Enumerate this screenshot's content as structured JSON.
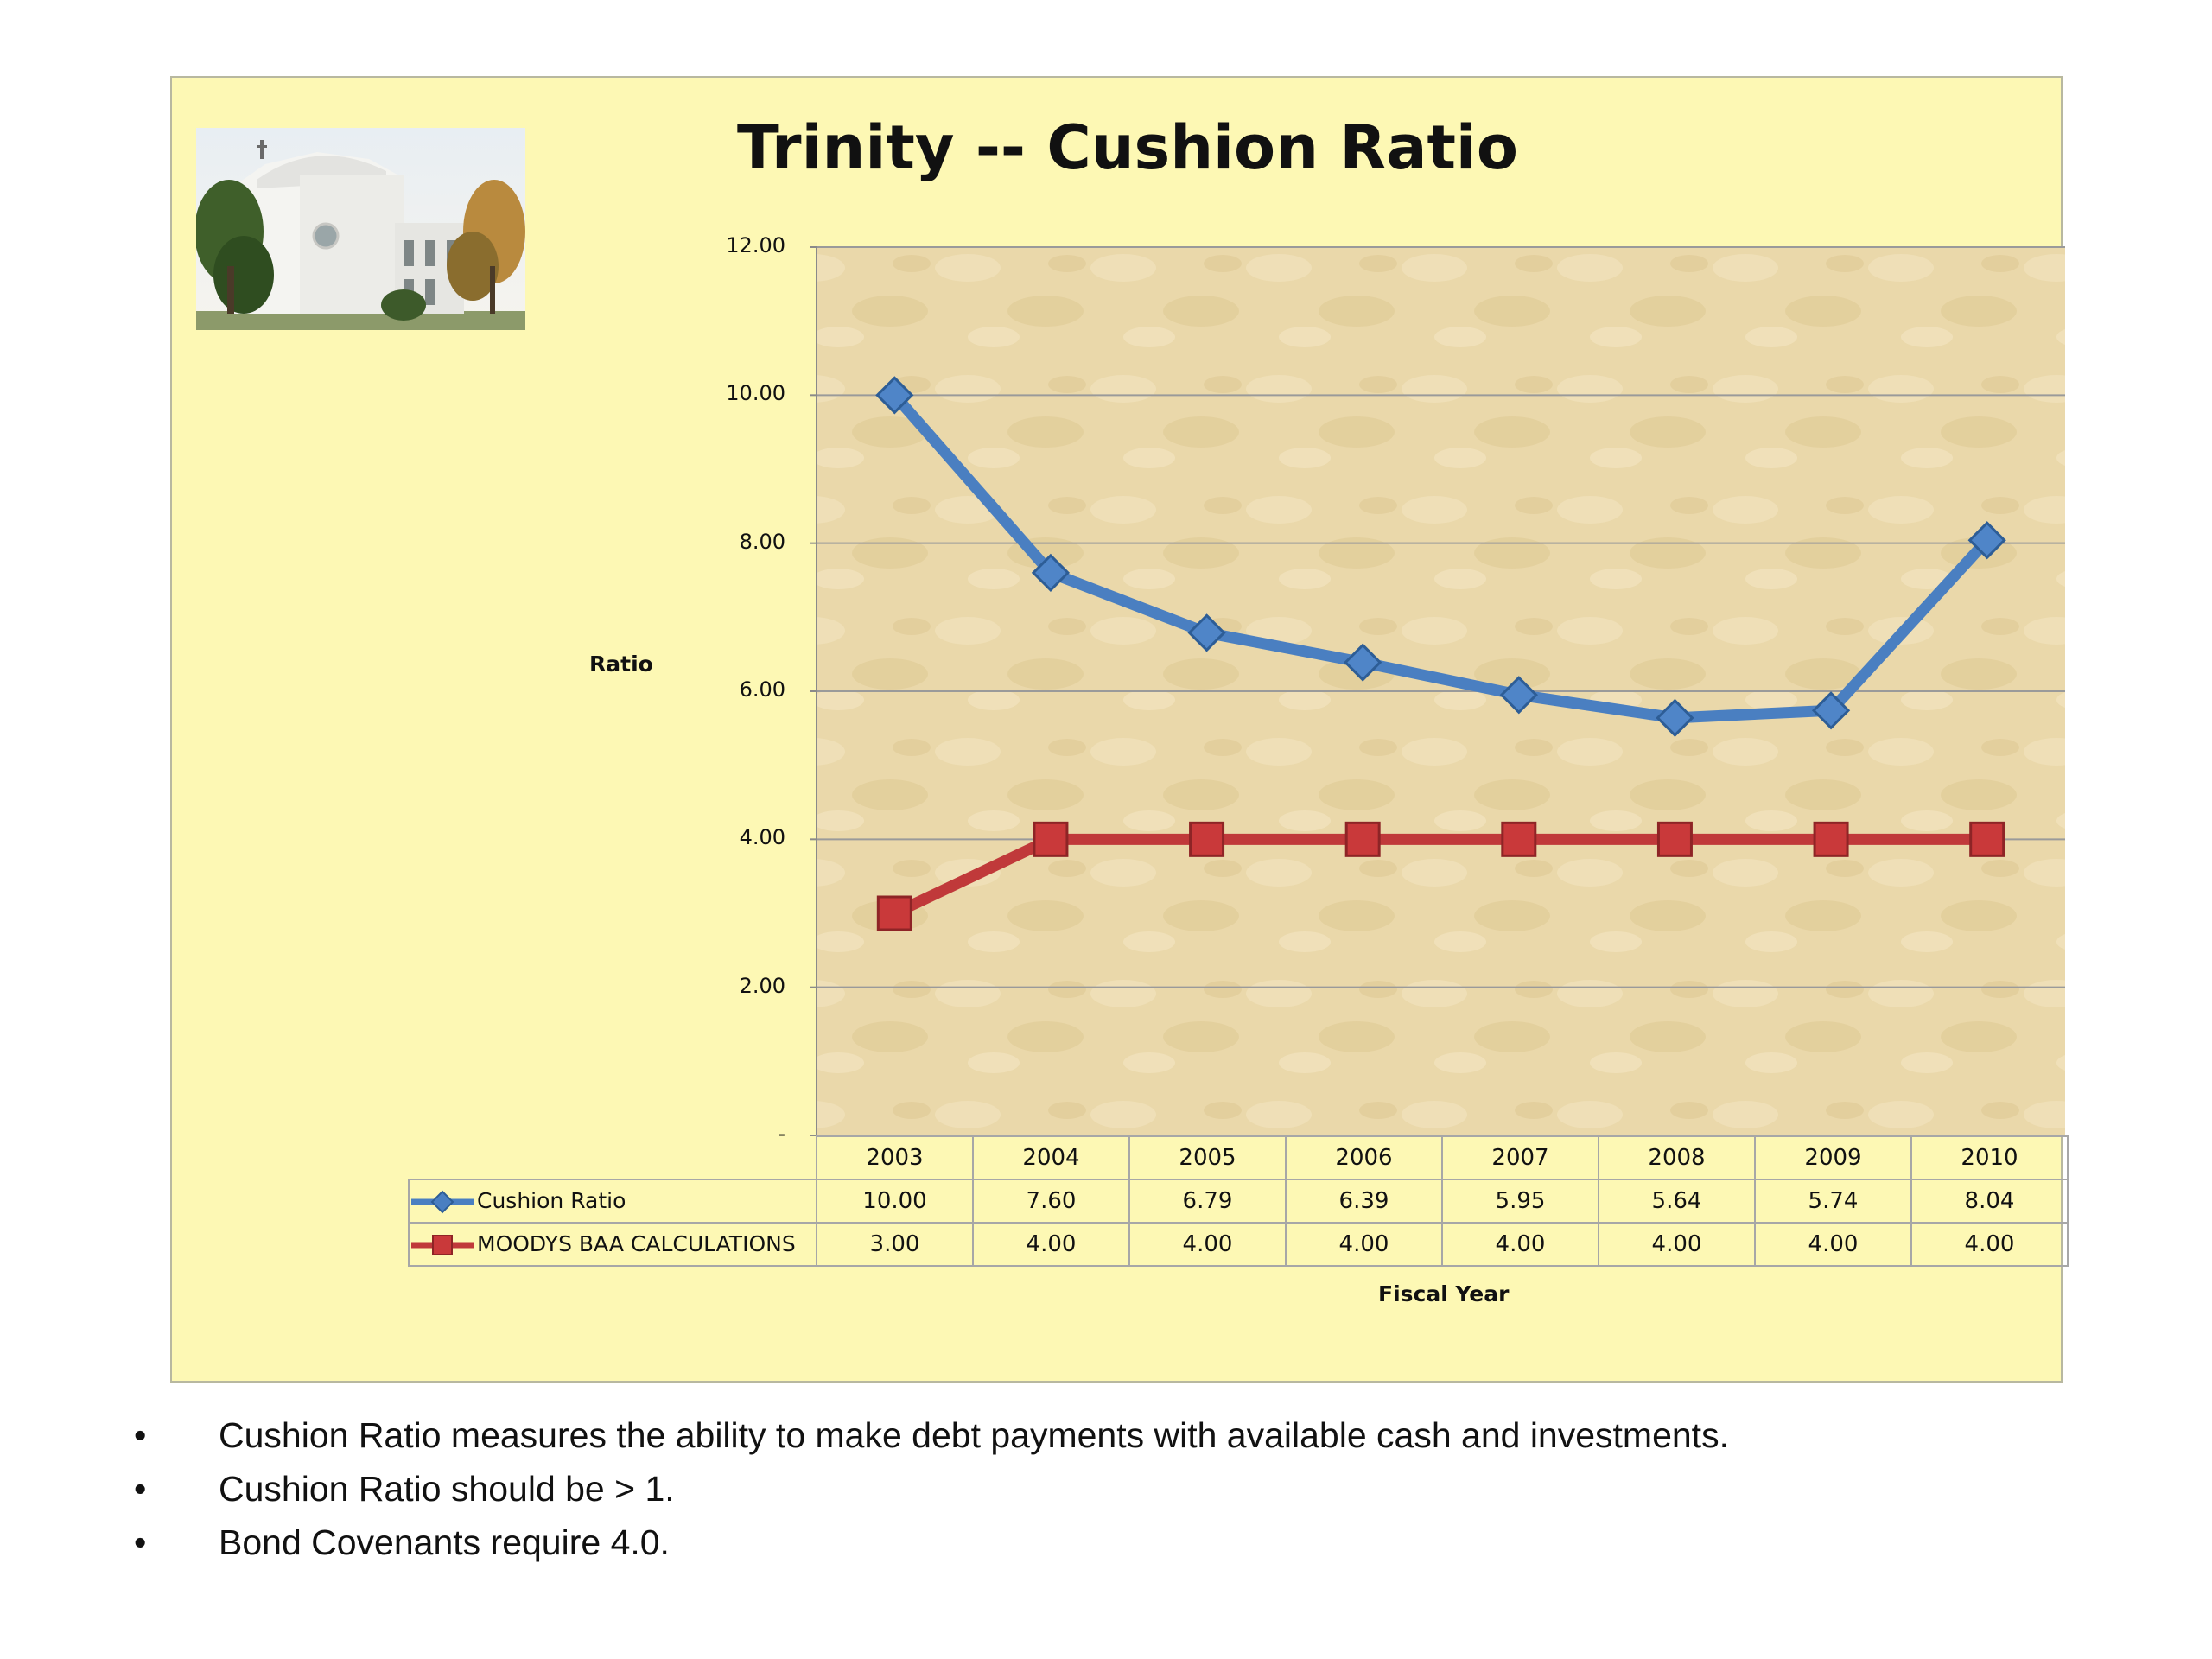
{
  "chart_data": {
    "type": "line",
    "title": "Trinity -- Cushion Ratio",
    "xlabel": "Fiscal Year",
    "ylabel": "Ratio",
    "ylim": [
      0,
      12
    ],
    "y_ticks": [
      {
        "value": 12,
        "label": "12.00"
      },
      {
        "value": 10,
        "label": "10.00"
      },
      {
        "value": 8,
        "label": "8.00"
      },
      {
        "value": 6,
        "label": "6.00"
      },
      {
        "value": 4,
        "label": "4.00"
      },
      {
        "value": 2,
        "label": "2.00"
      },
      {
        "value": 0,
        "label": "-"
      }
    ],
    "grid": true,
    "legend": "data table below plot",
    "categories": [
      "2003",
      "2004",
      "2005",
      "2006",
      "2007",
      "2008",
      "2009",
      "2010"
    ],
    "series": [
      {
        "name": "Cushion Ratio",
        "values": [
          10.0,
          7.6,
          6.79,
          6.39,
          5.95,
          5.64,
          5.74,
          8.04
        ],
        "labels": [
          "10.00",
          "7.60",
          "6.79",
          "6.39",
          "5.95",
          "5.64",
          "5.74",
          "8.04"
        ],
        "color": "#4a7fc1",
        "marker": "diamond"
      },
      {
        "name": "MOODYS BAA CALCULATIONS",
        "values": [
          3.0,
          4.0,
          4.0,
          4.0,
          4.0,
          4.0,
          4.0,
          4.0
        ],
        "labels": [
          "3.00",
          "4.00",
          "4.00",
          "4.00",
          "4.00",
          "4.00",
          "4.00",
          "4.00"
        ],
        "color": "#c0393a",
        "marker": "square"
      }
    ]
  },
  "notes": [
    {
      "bullet": "•",
      "text": "Cushion Ratio measures the ability to make debt payments with available cash and investments."
    },
    {
      "bullet": "•",
      "text": "Cushion Ratio should be > 1."
    },
    {
      "bullet": "•",
      "text": "Bond Covenants require 4.0."
    }
  ],
  "colors": {
    "panel_background": "#fdf8b4",
    "plot_background": "#e9d6a8",
    "gridline": "#9a9a9a"
  },
  "icons": {
    "photo": "church-photo"
  }
}
